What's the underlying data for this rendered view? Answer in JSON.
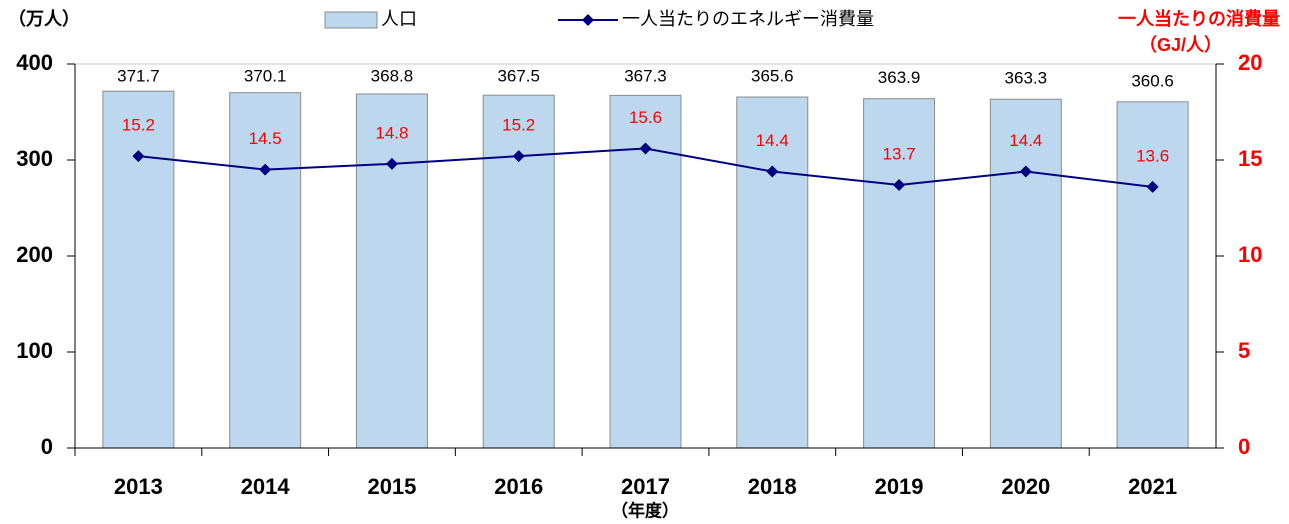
{
  "chart_data": {
    "type": "combo",
    "y_label": "（万人）",
    "y2_label": "一人当たりの消費量",
    "y2_unit": "（GJ/人）",
    "x_label": "（年度）",
    "categories": [
      "2013",
      "2014",
      "2015",
      "2016",
      "2017",
      "2018",
      "2019",
      "2020",
      "2021"
    ],
    "series": [
      {
        "name": "人口",
        "type": "bar",
        "color": "#bdd7ee",
        "label_color": "#000000",
        "values": [
          371.7,
          370.1,
          368.8,
          367.5,
          367.3,
          365.6,
          363.9,
          363.3,
          360.6
        ]
      },
      {
        "name": "一人当たりのエネルギー消費量",
        "type": "line",
        "axis": "y2",
        "color": "#000080",
        "label_color": "#ff0000",
        "values": [
          15.2,
          14.5,
          14.8,
          15.2,
          15.6,
          14.4,
          13.7,
          14.4,
          13.6
        ]
      }
    ],
    "ylim": [
      0,
      400
    ],
    "yticks": [
      0,
      100,
      200,
      300,
      400
    ],
    "y2lim": [
      0,
      20
    ],
    "y2ticks": [
      0,
      5,
      10,
      15,
      20
    ],
    "y2_color": "#ff0000",
    "grid": false,
    "legend": "top"
  }
}
